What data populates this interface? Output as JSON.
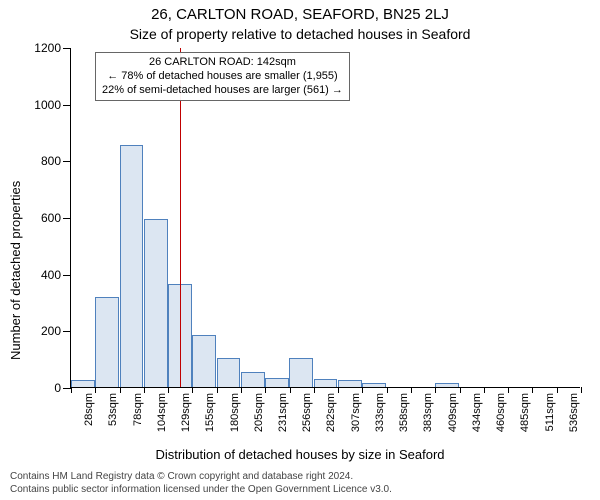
{
  "title": "26, CARLTON ROAD, SEAFORD, BN25 2LJ",
  "subtitle": "Size of property relative to detached houses in Seaford",
  "y_axis_label": "Number of detached properties",
  "x_axis_label": "Distribution of detached houses by size in Seaford",
  "chart": {
    "type": "bar",
    "ylim": [
      0,
      1200
    ],
    "y_ticks": [
      0,
      200,
      400,
      600,
      800,
      1000,
      1200
    ],
    "background_color": "#ffffff",
    "bar_fill": "#dce6f2",
    "bar_stroke": "#4f81bd",
    "ref_line_color": "#c00000",
    "ref_value": 142,
    "categories": [
      "28sqm",
      "53sqm",
      "78sqm",
      "104sqm",
      "129sqm",
      "155sqm",
      "180sqm",
      "205sqm",
      "231sqm",
      "256sqm",
      "282sqm",
      "307sqm",
      "333sqm",
      "358sqm",
      "383sqm",
      "409sqm",
      "434sqm",
      "460sqm",
      "485sqm",
      "511sqm",
      "536sqm"
    ],
    "values": [
      20,
      315,
      850,
      590,
      360,
      180,
      100,
      50,
      30,
      98,
      25,
      20,
      10,
      0,
      0,
      12,
      0,
      0,
      0,
      0,
      0
    ],
    "label_fontsize": 11,
    "tick_fontsize": 12
  },
  "annotation": {
    "line1": "26 CARLTON ROAD: 142sqm",
    "line2": "← 78% of detached houses are smaller (1,955)",
    "line3": "22% of semi-detached houses are larger (561) →"
  },
  "footer": {
    "line1": "Contains HM Land Registry data © Crown copyright and database right 2024.",
    "line2": "Contains public sector information licensed under the Open Government Licence v3.0."
  }
}
